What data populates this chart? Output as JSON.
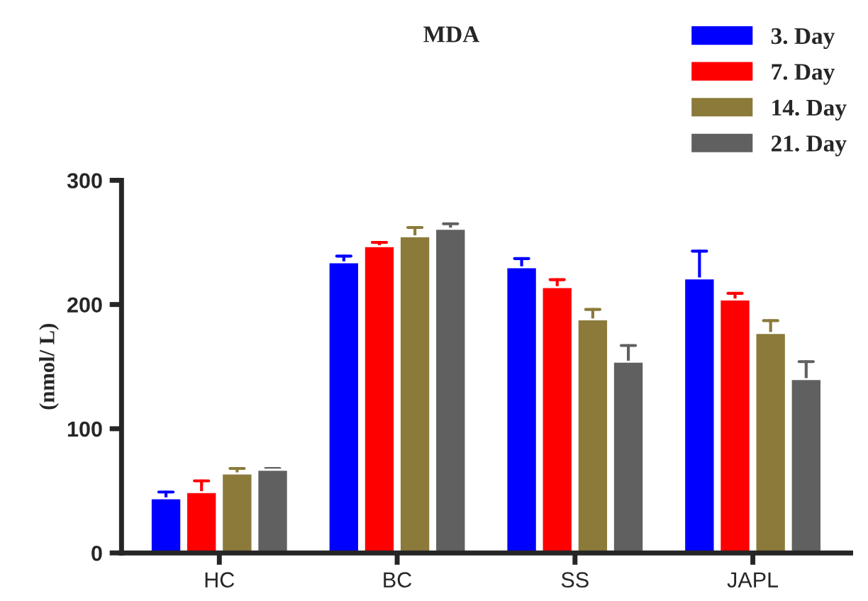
{
  "chart_data": {
    "type": "bar",
    "title": "MDA",
    "ylabel": "(nmol/ L)",
    "categories": [
      "HC",
      "BC",
      "SS",
      "JAPL"
    ],
    "series": [
      {
        "name": "3. Day",
        "color": "#0000ff",
        "values": [
          44,
          234,
          230,
          221
        ],
        "errors": [
          5,
          5,
          7,
          22
        ]
      },
      {
        "name": "7. Day",
        "color": "#ff0000",
        "values": [
          49,
          247,
          214,
          204
        ],
        "errors": [
          9,
          3,
          6,
          5
        ]
      },
      {
        "name": "14. Day",
        "color": "#8b7a3a",
        "values": [
          64,
          255,
          188,
          177
        ],
        "errors": [
          4,
          7,
          8,
          10
        ]
      },
      {
        "name": "21. Day",
        "color": "#606060",
        "values": [
          67,
          261,
          154,
          140
        ],
        "errors": [
          1,
          4,
          13,
          14
        ]
      }
    ],
    "ylim": [
      0,
      300
    ],
    "yticks": [
      0,
      100,
      200,
      300
    ],
    "grid": false,
    "legend": "top right"
  }
}
